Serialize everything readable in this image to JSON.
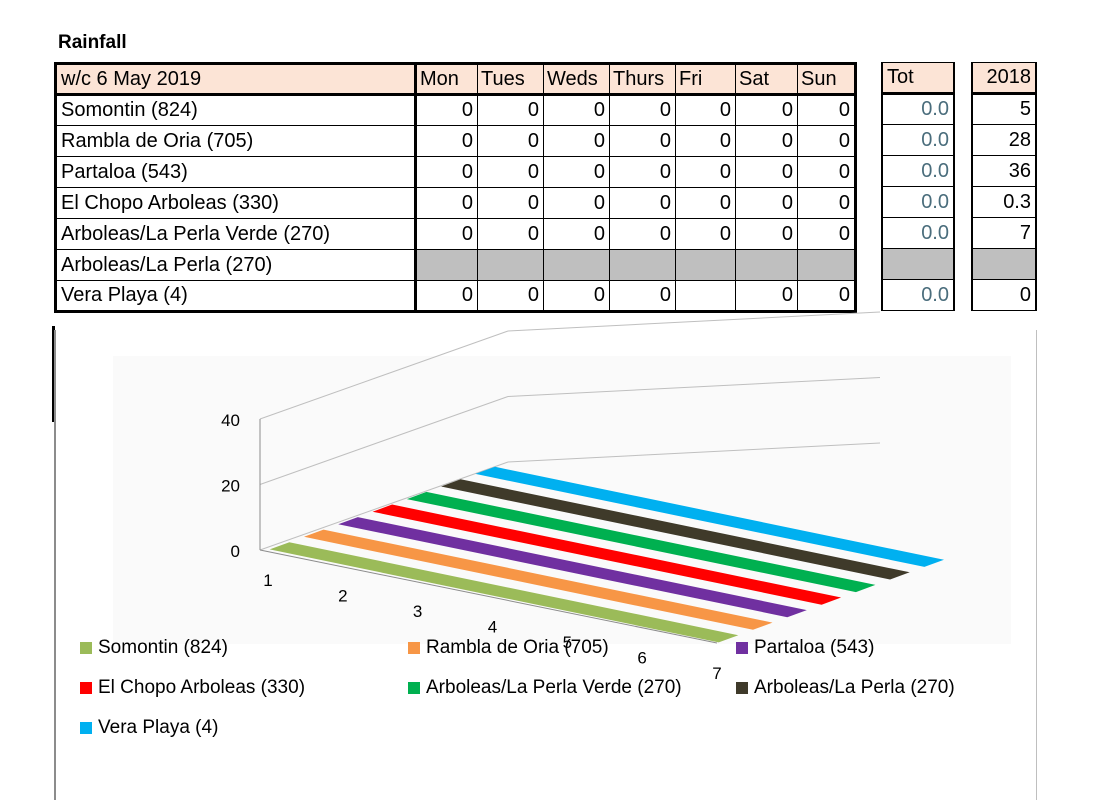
{
  "heading": "Rainfall",
  "table": {
    "week_label": "w/c 6 May 2019",
    "days": [
      "Mon",
      "Tues",
      "Weds",
      "Thurs",
      "Fri",
      "Sat",
      "Sun"
    ],
    "total_label": "Tot",
    "year_label": "2018",
    "rows": [
      {
        "name": "Somontin (824)",
        "values": [
          "0",
          "0",
          "0",
          "0",
          "0",
          "0",
          "0"
        ],
        "total": "0.0",
        "year": "5"
      },
      {
        "name": "Rambla de Oria (705)",
        "values": [
          "0",
          "0",
          "0",
          "0",
          "0",
          "0",
          "0"
        ],
        "total": "0.0",
        "year": "28"
      },
      {
        "name": "Partaloa (543)",
        "values": [
          "0",
          "0",
          "0",
          "0",
          "0",
          "0",
          "0"
        ],
        "total": "0.0",
        "year": "36"
      },
      {
        "name": "El Chopo Arboleas (330)",
        "values": [
          "0",
          "0",
          "0",
          "0",
          "0",
          "0",
          "0"
        ],
        "total": "0.0",
        "year": "0.3"
      },
      {
        "name": "Arboleas/La Perla Verde (270)",
        "values": [
          "0",
          "0",
          "0",
          "0",
          "0",
          "0",
          "0"
        ],
        "total": "0.0",
        "year": "7"
      },
      {
        "name": "Arboleas/La Perla (270)",
        "values": [
          "",
          "",
          "",
          "",
          "",
          "",
          ""
        ],
        "total": "",
        "year": ""
      },
      {
        "name": "Vera Playa (4)",
        "values": [
          "0",
          "0",
          "0",
          "0",
          "",
          "0",
          "0"
        ],
        "total": "0.0",
        "year": "0"
      }
    ]
  },
  "chart_data": {
    "type": "bar",
    "style": "3d-column",
    "x": [
      1,
      2,
      3,
      4,
      5,
      6,
      7
    ],
    "y_ticks": [
      "0",
      "20",
      "40"
    ],
    "ylim": [
      0,
      40
    ],
    "legend_position": "bottom",
    "series": [
      {
        "name": "Somontin (824)",
        "color": "#9bbb59",
        "values": [
          0,
          0,
          0,
          0,
          0,
          0,
          0
        ]
      },
      {
        "name": "Rambla de Oria (705)",
        "color": "#f79646",
        "values": [
          0,
          0,
          0,
          0,
          0,
          0,
          0
        ]
      },
      {
        "name": "Partaloa (543)",
        "color": "#7030a0",
        "values": [
          0,
          0,
          0,
          0,
          0,
          0,
          0
        ]
      },
      {
        "name": "El Chopo Arboleas (330)",
        "color": "#ff0000",
        "values": [
          0,
          0,
          0,
          0,
          0,
          0,
          0
        ]
      },
      {
        "name": "Arboleas/La Perla Verde (270)",
        "color": "#00b050",
        "values": [
          0,
          0,
          0,
          0,
          0,
          0,
          0
        ]
      },
      {
        "name": "Arboleas/La Perla (270)",
        "color": "#3f3a2a",
        "values": [
          0,
          0,
          0,
          0,
          0,
          0,
          0
        ]
      },
      {
        "name": "Vera Playa (4)",
        "color": "#00b0f0",
        "values": [
          0,
          0,
          0,
          0,
          0,
          0,
          0
        ]
      }
    ]
  }
}
